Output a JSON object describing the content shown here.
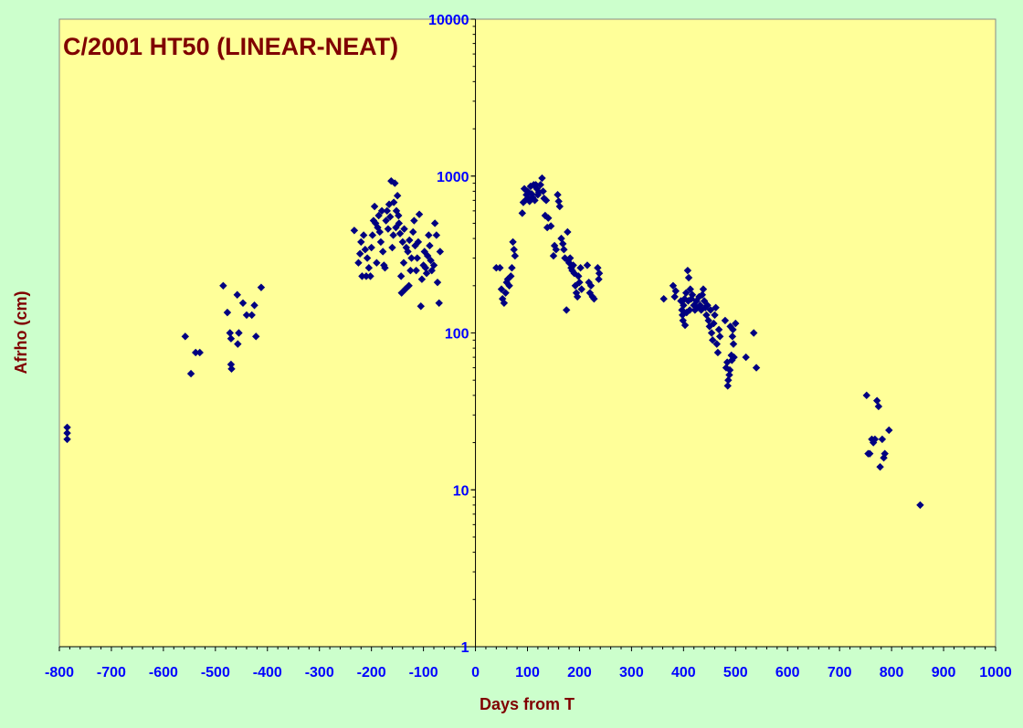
{
  "chart_data": {
    "type": "scatter",
    "title": "C/2001 HT50 (LINEAR-NEAT)",
    "xlabel": "Days from T",
    "ylabel": "Afrho (cm)",
    "xlim": [
      -800,
      1000
    ],
    "ylim": [
      1,
      10000
    ],
    "yscale": "log",
    "x_ticks": [
      "-800",
      "-700",
      "-600",
      "-500",
      "-400",
      "-300",
      "-200",
      "-100",
      "0",
      "100",
      "200",
      "300",
      "400",
      "500",
      "600",
      "700",
      "800",
      "900",
      "1000"
    ],
    "y_ticks": [
      "1",
      "10",
      "100",
      "1000",
      "10000"
    ],
    "grid": false,
    "legend": "none",
    "colors": {
      "background": "#ccffcc",
      "plot_area": "#ffff99",
      "marker": "#000080",
      "title_text": "#800000",
      "axis_label_text": "#800000",
      "tick_label_text": "#0000ff"
    },
    "series": [
      {
        "marker": "diamond",
        "points": [
          [
            -785,
            25
          ],
          [
            -785,
            23
          ],
          [
            -785,
            21
          ],
          [
            -558,
            95
          ],
          [
            -547,
            55
          ],
          [
            -538,
            75
          ],
          [
            -530,
            75
          ],
          [
            -485,
            200
          ],
          [
            -477,
            135
          ],
          [
            -472,
            100
          ],
          [
            -470,
            92
          ],
          [
            -470,
            63
          ],
          [
            -469,
            59
          ],
          [
            -458,
            175
          ],
          [
            -457,
            85
          ],
          [
            -455,
            100
          ],
          [
            -447,
            155
          ],
          [
            -440,
            130
          ],
          [
            -430,
            130
          ],
          [
            -425,
            150
          ],
          [
            -422,
            95
          ],
          [
            -412,
            195
          ],
          [
            -233,
            450
          ],
          [
            -225,
            280
          ],
          [
            -222,
            320
          ],
          [
            -220,
            380
          ],
          [
            -218,
            230
          ],
          [
            -215,
            420
          ],
          [
            -212,
            340
          ],
          [
            -210,
            230
          ],
          [
            -208,
            300
          ],
          [
            -205,
            260
          ],
          [
            -202,
            230
          ],
          [
            -200,
            350
          ],
          [
            -198,
            420
          ],
          [
            -196,
            520
          ],
          [
            -194,
            640
          ],
          [
            -192,
            500
          ],
          [
            -190,
            280
          ],
          [
            -188,
            470
          ],
          [
            -186,
            560
          ],
          [
            -184,
            440
          ],
          [
            -182,
            380
          ],
          [
            -180,
            600
          ],
          [
            -178,
            330
          ],
          [
            -176,
            270
          ],
          [
            -174,
            260
          ],
          [
            -172,
            520
          ],
          [
            -170,
            600
          ],
          [
            -168,
            460
          ],
          [
            -166,
            660
          ],
          [
            -164,
            550
          ],
          [
            -162,
            930
          ],
          [
            -160,
            350
          ],
          [
            -158,
            420
          ],
          [
            -157,
            680
          ],
          [
            -155,
            900
          ],
          [
            -153,
            470
          ],
          [
            -152,
            600
          ],
          [
            -150,
            750
          ],
          [
            -148,
            560
          ],
          [
            -147,
            500
          ],
          [
            -145,
            430
          ],
          [
            -143,
            230
          ],
          [
            -142,
            180
          ],
          [
            -140,
            380
          ],
          [
            -138,
            280
          ],
          [
            -137,
            460
          ],
          [
            -135,
            190
          ],
          [
            -133,
            350
          ],
          [
            -130,
            330
          ],
          [
            -128,
            200
          ],
          [
            -127,
            390
          ],
          [
            -125,
            250
          ],
          [
            -123,
            300
          ],
          [
            -120,
            440
          ],
          [
            -118,
            520
          ],
          [
            -116,
            360
          ],
          [
            -114,
            250
          ],
          [
            -112,
            300
          ],
          [
            -110,
            380
          ],
          [
            -108,
            570
          ],
          [
            -105,
            148
          ],
          [
            -103,
            220
          ],
          [
            -100,
            270
          ],
          [
            -98,
            330
          ],
          [
            -96,
            260
          ],
          [
            -94,
            240
          ],
          [
            -92,
            310
          ],
          [
            -90,
            420
          ],
          [
            -88,
            360
          ],
          [
            -86,
            290
          ],
          [
            -84,
            250
          ],
          [
            -80,
            270
          ],
          [
            -78,
            500
          ],
          [
            -75,
            420
          ],
          [
            -73,
            210
          ],
          [
            -70,
            155
          ],
          [
            -68,
            330
          ],
          [
            40,
            260
          ],
          [
            47,
            260
          ],
          [
            50,
            190
          ],
          [
            52,
            165
          ],
          [
            55,
            155
          ],
          [
            58,
            180
          ],
          [
            60,
            210
          ],
          [
            62,
            220
          ],
          [
            65,
            200
          ],
          [
            68,
            230
          ],
          [
            70,
            260
          ],
          [
            72,
            380
          ],
          [
            74,
            340
          ],
          [
            76,
            310
          ],
          [
            90,
            580
          ],
          [
            92,
            680
          ],
          [
            94,
            830
          ],
          [
            96,
            700
          ],
          [
            98,
            760
          ],
          [
            100,
            800
          ],
          [
            102,
            720
          ],
          [
            104,
            690
          ],
          [
            106,
            860
          ],
          [
            108,
            770
          ],
          [
            110,
            730
          ],
          [
            112,
            880
          ],
          [
            114,
            700
          ],
          [
            116,
            880
          ],
          [
            118,
            830
          ],
          [
            120,
            760
          ],
          [
            122,
            790
          ],
          [
            125,
            880
          ],
          [
            128,
            970
          ],
          [
            130,
            800
          ],
          [
            132,
            720
          ],
          [
            134,
            560
          ],
          [
            136,
            700
          ],
          [
            138,
            470
          ],
          [
            140,
            540
          ],
          [
            145,
            480
          ],
          [
            150,
            310
          ],
          [
            152,
            360
          ],
          [
            155,
            340
          ],
          [
            158,
            760
          ],
          [
            160,
            690
          ],
          [
            162,
            640
          ],
          [
            165,
            400
          ],
          [
            168,
            370
          ],
          [
            170,
            340
          ],
          [
            172,
            300
          ],
          [
            175,
            140
          ],
          [
            177,
            440
          ],
          [
            178,
            290
          ],
          [
            180,
            280
          ],
          [
            182,
            300
          ],
          [
            184,
            260
          ],
          [
            186,
            250
          ],
          [
            188,
            270
          ],
          [
            190,
            240
          ],
          [
            192,
            200
          ],
          [
            194,
            180
          ],
          [
            196,
            170
          ],
          [
            198,
            230
          ],
          [
            200,
            210
          ],
          [
            202,
            260
          ],
          [
            204,
            190
          ],
          [
            215,
            270
          ],
          [
            218,
            210
          ],
          [
            220,
            180
          ],
          [
            222,
            200
          ],
          [
            225,
            170
          ],
          [
            228,
            165
          ],
          [
            235,
            260
          ],
          [
            237,
            220
          ],
          [
            238,
            240
          ],
          [
            362,
            165
          ],
          [
            380,
            200
          ],
          [
            383,
            170
          ],
          [
            385,
            185
          ],
          [
            395,
            160
          ],
          [
            397,
            140
          ],
          [
            398,
            130
          ],
          [
            399,
            120
          ],
          [
            400,
            150
          ],
          [
            402,
            165
          ],
          [
            403,
            112
          ],
          [
            405,
            180
          ],
          [
            406,
            135
          ],
          [
            408,
            250
          ],
          [
            409,
            160
          ],
          [
            410,
            225
          ],
          [
            412,
            140
          ],
          [
            413,
            190
          ],
          [
            415,
            165
          ],
          [
            417,
            175
          ],
          [
            420,
            150
          ],
          [
            422,
            140
          ],
          [
            425,
            160
          ],
          [
            427,
            145
          ],
          [
            430,
            170
          ],
          [
            432,
            150
          ],
          [
            434,
            140
          ],
          [
            436,
            175
          ],
          [
            438,
            190
          ],
          [
            440,
            160
          ],
          [
            442,
            145
          ],
          [
            444,
            130
          ],
          [
            446,
            150
          ],
          [
            448,
            120
          ],
          [
            450,
            110
          ],
          [
            452,
            140
          ],
          [
            454,
            100
          ],
          [
            456,
            90
          ],
          [
            458,
            115
          ],
          [
            460,
            130
          ],
          [
            462,
            145
          ],
          [
            464,
            85
          ],
          [
            466,
            75
          ],
          [
            468,
            105
          ],
          [
            470,
            95
          ],
          [
            480,
            120
          ],
          [
            482,
            60
          ],
          [
            484,
            65
          ],
          [
            485,
            46
          ],
          [
            486,
            50
          ],
          [
            488,
            54
          ],
          [
            489,
            58
          ],
          [
            490,
            110
          ],
          [
            492,
            72
          ],
          [
            493,
            67
          ],
          [
            494,
            95
          ],
          [
            495,
            105
          ],
          [
            496,
            85
          ],
          [
            497,
            70
          ],
          [
            500,
            115
          ],
          [
            520,
            70
          ],
          [
            535,
            100
          ],
          [
            540,
            60
          ],
          [
            752,
            40
          ],
          [
            755,
            17
          ],
          [
            758,
            17
          ],
          [
            762,
            21
          ],
          [
            765,
            20
          ],
          [
            768,
            21
          ],
          [
            772,
            37
          ],
          [
            775,
            34
          ],
          [
            778,
            14
          ],
          [
            782,
            21
          ],
          [
            785,
            16
          ],
          [
            787,
            17
          ],
          [
            795,
            24
          ],
          [
            855,
            8
          ]
        ]
      }
    ]
  }
}
